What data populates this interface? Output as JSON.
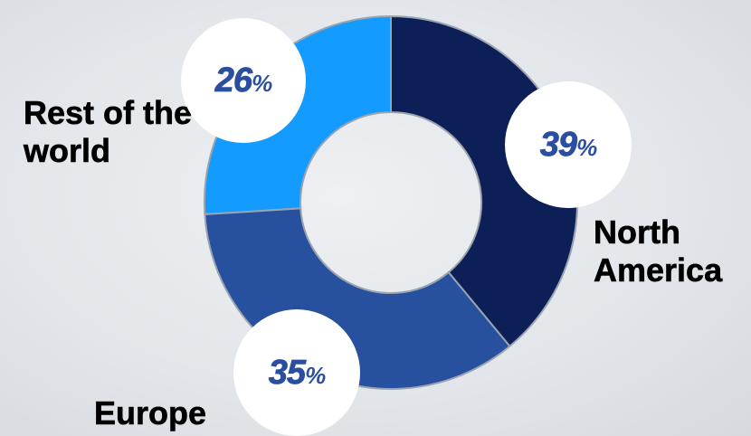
{
  "chart_data": {
    "type": "pie",
    "style": "donut",
    "slices": [
      {
        "label": "North America",
        "value": 39,
        "color": "#0d1f57"
      },
      {
        "label": "Europe",
        "value": 35,
        "color": "#27509e"
      },
      {
        "label": "Rest of the world",
        "value": 26,
        "color": "#139bff"
      }
    ],
    "slice_label_suffix": "%",
    "separator_color": "#9aa3b0",
    "badge_color": "#ffffff",
    "badge_text_color": "#2b4f9e",
    "label_text_color": "#000000"
  }
}
